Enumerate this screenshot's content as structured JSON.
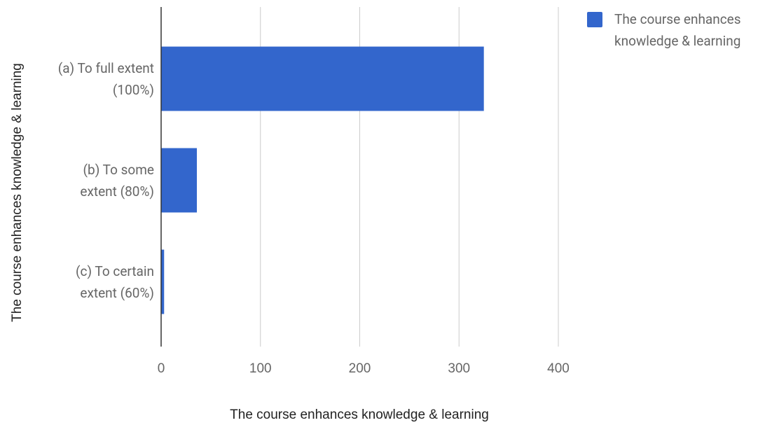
{
  "chart_data": {
    "type": "bar",
    "orientation": "horizontal",
    "categories": [
      "(a) To full extent (100%)",
      "(b) To some extent (80%)",
      "(c) To certain extent (60%)"
    ],
    "series": [
      {
        "name": "The course enhances knowledge & learning",
        "color": "#3366cc",
        "values": [
          325,
          36,
          3
        ]
      }
    ],
    "xlabel": "The course enhances knowledge & learning",
    "ylabel": "The course enhances knowledge & learning",
    "xlim": [
      0,
      400
    ],
    "xticks": [
      0,
      100,
      200,
      300,
      400
    ],
    "grid": true,
    "legend": "top-right"
  }
}
